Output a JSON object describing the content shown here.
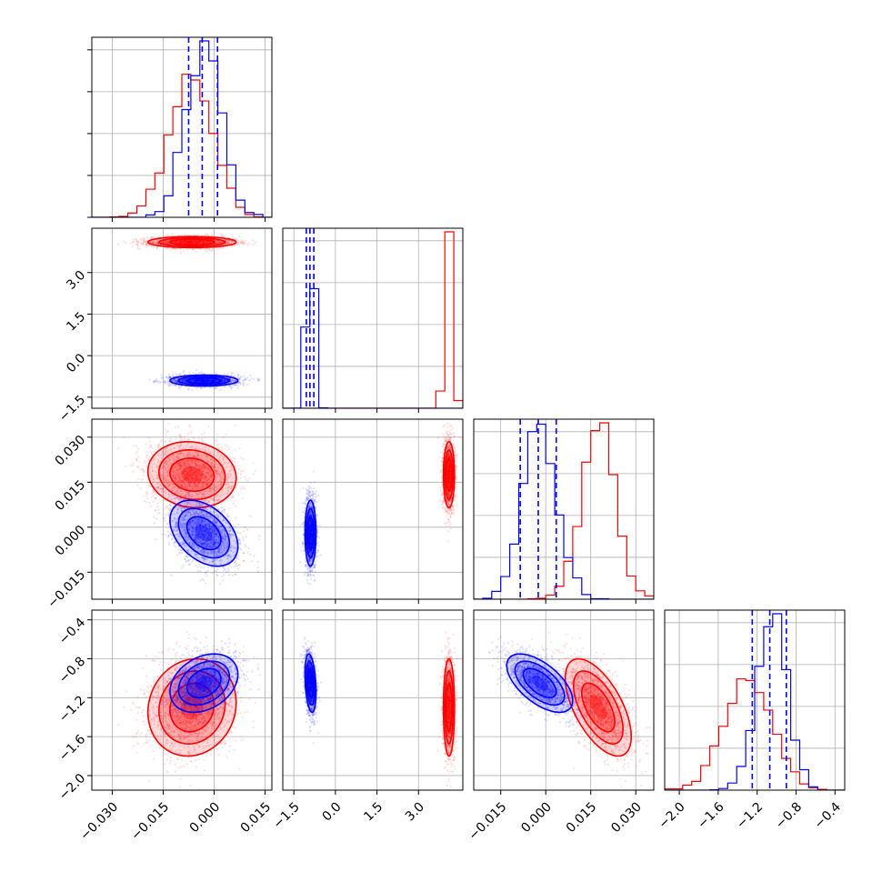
{
  "colors": {
    "series_a": "#ff0000",
    "series_b": "#0000ff",
    "grid": "#b0b0b0"
  },
  "chart_data": {
    "type": "corner",
    "title": "",
    "grid": true,
    "legend": "none",
    "parameters": [
      {
        "range": [
          -0.036,
          0.017
        ],
        "ticks": [
          -0.03,
          -0.015,
          0.0,
          0.015
        ],
        "tick_labels": [
          "−0.030",
          "−0.015",
          "0.000",
          "0.015"
        ]
      },
      {
        "range": [
          -1.9,
          4.6
        ],
        "ticks": [
          -1.5,
          0.0,
          1.5,
          3.0
        ],
        "tick_labels": [
          "−1.5",
          "0.0",
          "1.5",
          "3.0"
        ]
      },
      {
        "range": [
          -0.024,
          0.036
        ],
        "ticks": [
          -0.015,
          0.0,
          0.015,
          0.03
        ],
        "tick_labels": [
          "−0.015",
          "0.000",
          "0.015",
          "0.030"
        ]
      },
      {
        "range": [
          -2.15,
          -0.3
        ],
        "ticks": [
          -2.0,
          -1.6,
          -1.2,
          -0.8,
          -0.4
        ],
        "tick_labels": [
          "−2.0",
          "−1.6",
          "−1.2",
          "−0.8",
          "−0.4"
        ]
      }
    ],
    "series": [
      {
        "name": "",
        "color": "#ff0000",
        "mean": [
          -0.0065,
          4.1,
          0.0175,
          -1.3
        ],
        "sd": [
          0.0065,
          0.1,
          0.0055,
          0.25
        ],
        "correlation": [
          [
            1,
            0,
            -0.1,
            0.1
          ],
          [
            0,
            1,
            0.0,
            0.0
          ],
          [
            -0.1,
            0.0,
            1,
            -0.6
          ],
          [
            0.1,
            0.0,
            -0.6,
            1
          ]
        ]
      },
      {
        "name": "",
        "color": "#0000ff",
        "mean": [
          -0.003,
          -0.9,
          -0.002,
          -1.05
        ],
        "sd": [
          0.005,
          0.1,
          0.0055,
          0.15
        ],
        "correlation": [
          [
            1,
            0,
            -0.4,
            0.3
          ],
          [
            0,
            1,
            0.0,
            -0.3
          ],
          [
            -0.4,
            0.0,
            1,
            -0.6
          ],
          [
            0.3,
            -0.3,
            -0.6,
            1
          ]
        ]
      }
    ],
    "quantile_lines": [
      {
        "parameter": 0,
        "color": "#0000ff",
        "values": [
          -0.0075,
          -0.0035,
          0.001
        ]
      },
      {
        "parameter": 1,
        "color": "#0000ff",
        "values": [
          -1.05,
          -0.92,
          -0.78
        ]
      },
      {
        "parameter": 2,
        "color": "#0000ff",
        "values": [
          -0.0085,
          -0.0025,
          0.0035
        ]
      },
      {
        "parameter": 3,
        "color": "#0000ff",
        "values": [
          -1.25,
          -1.07,
          -0.9
        ]
      }
    ]
  }
}
